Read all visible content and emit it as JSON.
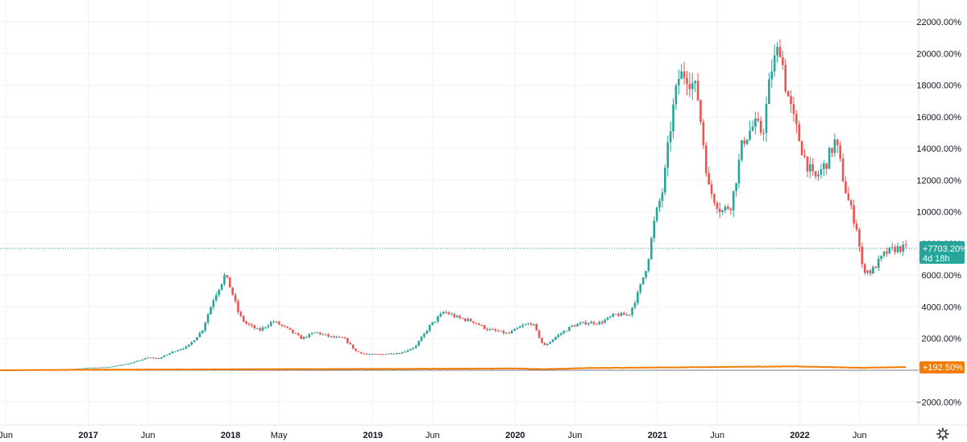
{
  "chart_data": {
    "type": "candlestick",
    "y_unit": "%",
    "ylim": [
      -2500,
      22500
    ],
    "y_ticks": [
      22000,
      20000,
      18000,
      16000,
      14000,
      12000,
      10000,
      8000,
      6000,
      4000,
      2000,
      -2000
    ],
    "y_tick_labels": [
      "22000.00%",
      "20000.00%",
      "18000.00%",
      "16000.00%",
      "14000.00%",
      "12000.00%",
      "10000.00%",
      "8000.00%",
      "6000.00%",
      "4000.00%",
      "2000.00%",
      "−2000.00%"
    ],
    "x_range": [
      2016.38,
      2022.75
    ],
    "x_ticks": [
      {
        "t": 2016.42,
        "label": "Jun",
        "major": false
      },
      {
        "t": 2017.0,
        "label": "2017",
        "major": true
      },
      {
        "t": 2017.42,
        "label": "Jun",
        "major": false
      },
      {
        "t": 2018.0,
        "label": "2018",
        "major": true
      },
      {
        "t": 2018.34,
        "label": "May",
        "major": false
      },
      {
        "t": 2019.0,
        "label": "2019",
        "major": true
      },
      {
        "t": 2019.42,
        "label": "Jun",
        "major": false
      },
      {
        "t": 2020.0,
        "label": "2020",
        "major": true
      },
      {
        "t": 2020.42,
        "label": "Jun",
        "major": false
      },
      {
        "t": 2021.0,
        "label": "2021",
        "major": true
      },
      {
        "t": 2021.42,
        "label": "Jun",
        "major": false
      },
      {
        "t": 2022.0,
        "label": "2022",
        "major": true
      },
      {
        "t": 2022.42,
        "label": "Jun",
        "major": false
      }
    ],
    "series": [
      {
        "style": "candles",
        "color_up": "#26a69a",
        "color_down": "#ef5350",
        "last_value_label": "+7703.20%",
        "countdown_label": "4d 18h",
        "last_value": 7703.2,
        "keypoints": [
          [
            2016.38,
            0
          ],
          [
            2016.7,
            30
          ],
          [
            2016.9,
            80
          ],
          [
            2017.0,
            150
          ],
          [
            2017.15,
            200
          ],
          [
            2017.3,
            450
          ],
          [
            2017.42,
            800
          ],
          [
            2017.5,
            750
          ],
          [
            2017.6,
            1200
          ],
          [
            2017.7,
            1500
          ],
          [
            2017.8,
            2500
          ],
          [
            2017.88,
            4500
          ],
          [
            2017.96,
            6000
          ],
          [
            2018.0,
            5200
          ],
          [
            2018.06,
            3500
          ],
          [
            2018.1,
            3000
          ],
          [
            2018.2,
            2500
          ],
          [
            2018.3,
            3100
          ],
          [
            2018.4,
            2600
          ],
          [
            2018.5,
            2000
          ],
          [
            2018.6,
            2400
          ],
          [
            2018.7,
            2100
          ],
          [
            2018.8,
            2000
          ],
          [
            2018.88,
            1200
          ],
          [
            2018.95,
            1000
          ],
          [
            2019.05,
            1000
          ],
          [
            2019.2,
            1100
          ],
          [
            2019.3,
            1500
          ],
          [
            2019.4,
            2800
          ],
          [
            2019.5,
            3700
          ],
          [
            2019.6,
            3300
          ],
          [
            2019.7,
            3100
          ],
          [
            2019.8,
            2600
          ],
          [
            2019.95,
            2300
          ],
          [
            2020.05,
            2800
          ],
          [
            2020.12,
            3000
          ],
          [
            2020.2,
            1500
          ],
          [
            2020.3,
            2200
          ],
          [
            2020.4,
            2800
          ],
          [
            2020.5,
            3000
          ],
          [
            2020.6,
            3000
          ],
          [
            2020.7,
            3500
          ],
          [
            2020.8,
            3500
          ],
          [
            2020.87,
            5000
          ],
          [
            2020.93,
            6800
          ],
          [
            2020.98,
            9500
          ],
          [
            2021.04,
            11500
          ],
          [
            2021.1,
            16000
          ],
          [
            2021.15,
            18500
          ],
          [
            2021.2,
            18800
          ],
          [
            2021.28,
            17500
          ],
          [
            2021.36,
            11500
          ],
          [
            2021.45,
            10000
          ],
          [
            2021.52,
            10500
          ],
          [
            2021.6,
            14500
          ],
          [
            2021.68,
            15500
          ],
          [
            2021.74,
            15000
          ],
          [
            2021.8,
            19000
          ],
          [
            2021.86,
            20500
          ],
          [
            2021.9,
            18000
          ],
          [
            2021.95,
            16000
          ],
          [
            2022.03,
            13500
          ],
          [
            2022.1,
            12000
          ],
          [
            2022.18,
            13000
          ],
          [
            2022.25,
            14500
          ],
          [
            2022.33,
            11000
          ],
          [
            2022.4,
            9000
          ],
          [
            2022.44,
            6400
          ],
          [
            2022.5,
            6200
          ],
          [
            2022.6,
            7400
          ],
          [
            2022.68,
            7700
          ]
        ]
      },
      {
        "style": "line",
        "color": "#f57c00",
        "last_value_label": "+192.50%",
        "last_value": 192.5,
        "keypoints": [
          [
            2016.38,
            0
          ],
          [
            2017.0,
            30
          ],
          [
            2018.0,
            60
          ],
          [
            2019.0,
            80
          ],
          [
            2020.0,
            110
          ],
          [
            2020.2,
            60
          ],
          [
            2020.5,
            140
          ],
          [
            2021.0,
            170
          ],
          [
            2021.5,
            210
          ],
          [
            2021.95,
            240
          ],
          [
            2022.45,
            150
          ],
          [
            2022.68,
            192.5
          ]
        ]
      }
    ],
    "baseline": 0,
    "grid": true,
    "legend": "none"
  },
  "ui": {
    "settings_icon": "gear-icon"
  }
}
